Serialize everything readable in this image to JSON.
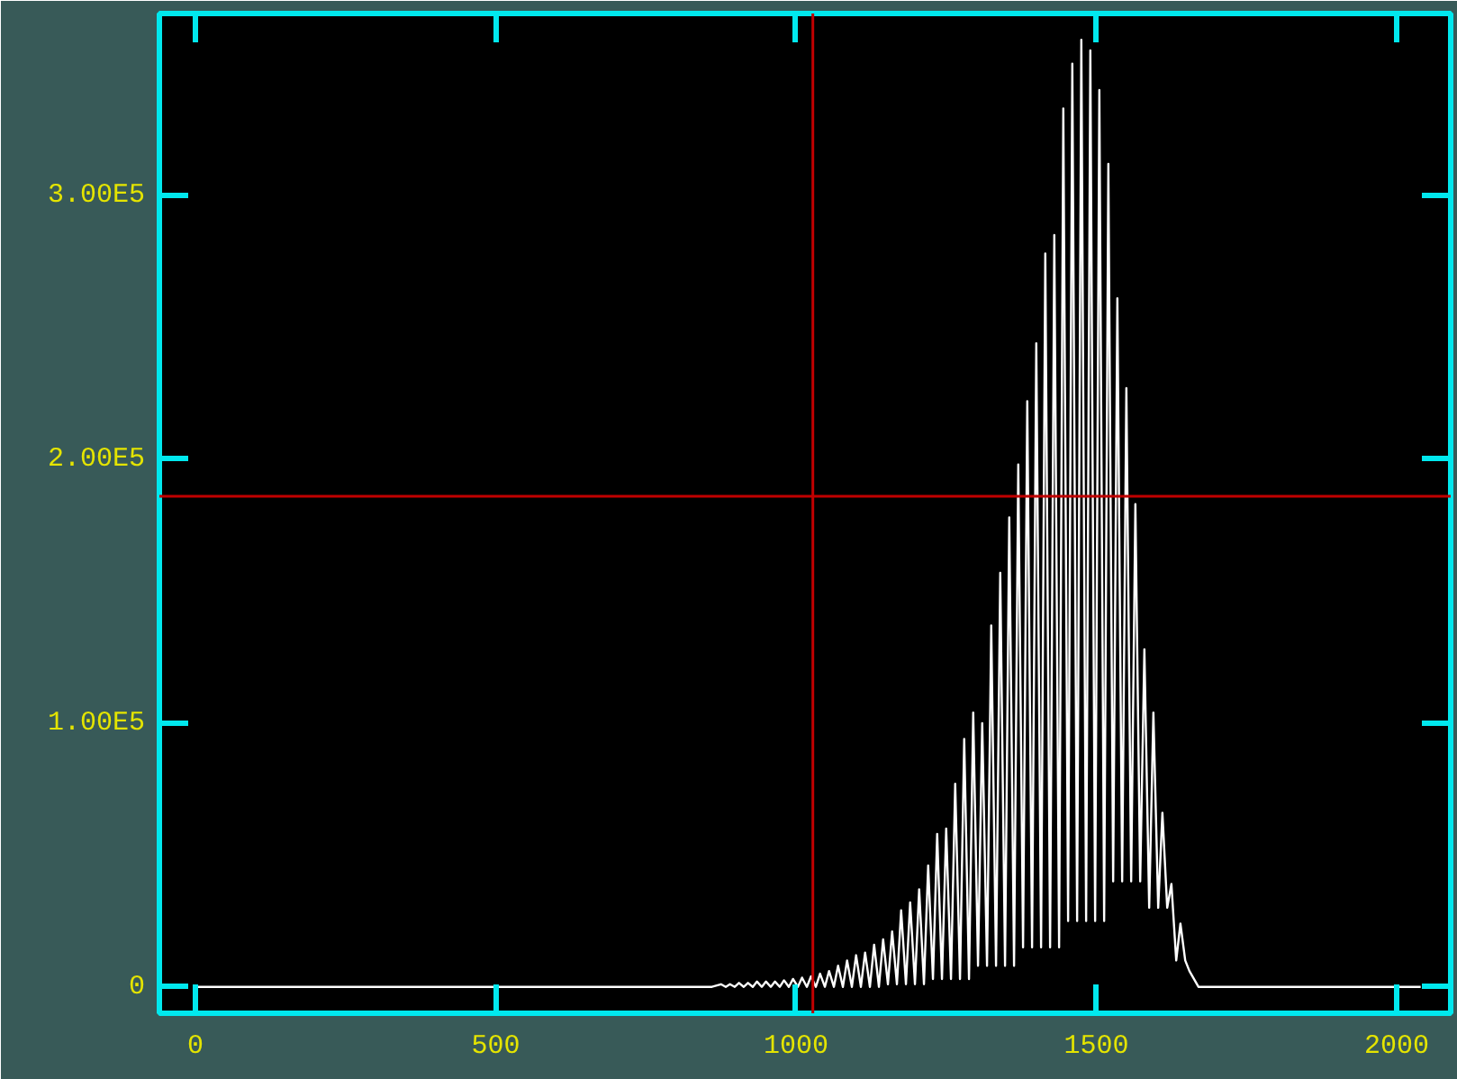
{
  "chart_data": {
    "type": "line",
    "x": [
      0,
      860,
      875,
      883,
      890,
      898,
      905,
      913,
      920,
      928,
      935,
      943,
      950,
      958,
      965,
      973,
      980,
      988,
      995,
      1003,
      1010,
      1018,
      1025,
      1033,
      1040,
      1048,
      1055,
      1063,
      1070,
      1078,
      1085,
      1093,
      1100,
      1108,
      1115,
      1123,
      1130,
      1138,
      1145,
      1153,
      1160,
      1168,
      1175,
      1183,
      1190,
      1198,
      1205,
      1213,
      1220,
      1228,
      1235,
      1243,
      1250,
      1258,
      1265,
      1273,
      1280,
      1288,
      1295,
      1303,
      1310,
      1318,
      1325,
      1333,
      1340,
      1348,
      1355,
      1363,
      1370,
      1378,
      1385,
      1393,
      1400,
      1408,
      1415,
      1423,
      1430,
      1438,
      1445,
      1453,
      1460,
      1468,
      1475,
      1483,
      1490,
      1498,
      1505,
      1513,
      1520,
      1528,
      1535,
      1543,
      1550,
      1558,
      1565,
      1573,
      1580,
      1588,
      1595,
      1603,
      1610,
      1618,
      1625,
      1633,
      1640,
      1648,
      1655,
      1670,
      2040
    ],
    "series": [
      {
        "color": "#ffffff",
        "values": [
          0,
          0,
          1000,
          0,
          1000,
          0,
          1500,
          0,
          1500,
          0,
          2000,
          0,
          2000,
          0,
          2000,
          0,
          2500,
          0,
          3000,
          0,
          3500,
          0,
          4000,
          0,
          5000,
          0,
          6000,
          0,
          8000,
          0,
          10000,
          0,
          12000,
          0,
          13000,
          0,
          16000,
          0,
          18000,
          1000,
          21000,
          1000,
          29000,
          1000,
          32000,
          1000,
          37000,
          1000,
          46000,
          3000,
          58000,
          3000,
          60000,
          3000,
          77000,
          3000,
          94000,
          3000,
          104000,
          8000,
          100000,
          8000,
          137000,
          8000,
          157000,
          8000,
          178000,
          8000,
          198000,
          15000,
          222000,
          15000,
          244000,
          15000,
          278000,
          15000,
          285000,
          15000,
          333000,
          25000,
          350000,
          25000,
          359000,
          25000,
          355000,
          25000,
          340000,
          25000,
          312000,
          40000,
          261000,
          40000,
          227000,
          40000,
          183000,
          40000,
          128000,
          30000,
          104000,
          30000,
          66000,
          30000,
          39000,
          10000,
          24000,
          10000,
          6000,
          0,
          0
        ]
      }
    ],
    "xlim": [
      -60,
      2090
    ],
    "ylim": [
      -10000,
      369000
    ],
    "xticks": [
      0,
      500,
      1000,
      1500,
      2000
    ],
    "yticks": [
      0,
      {
        "value": 100000,
        "label": "1.00E5"
      },
      {
        "value": 200000,
        "label": "2.00E5"
      },
      {
        "value": 300000,
        "label": "3.00E5"
      }
    ],
    "ref_lines": [
      {
        "axis": "x",
        "value": 1028,
        "color": "#c00000"
      },
      {
        "axis": "y",
        "value": 186000,
        "color": "#c00000"
      }
    ],
    "grid": false
  }
}
